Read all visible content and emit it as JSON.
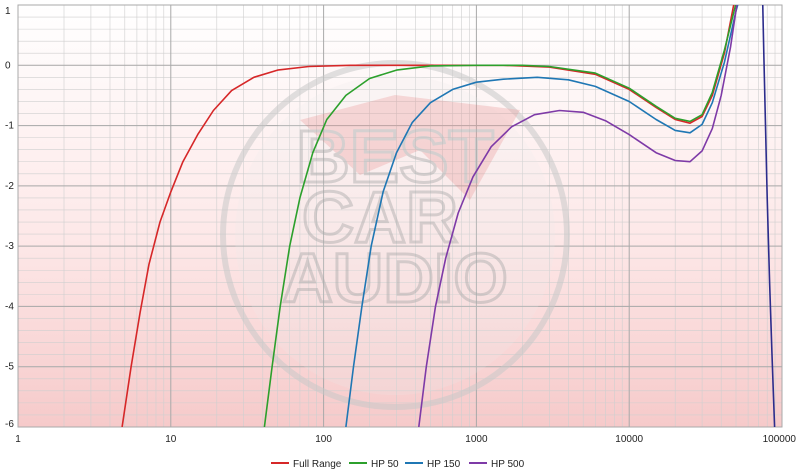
{
  "colors": {
    "background_top": "#ffffff",
    "background_bottom": "#f6caca",
    "grid_major": "#a9a9a9",
    "grid_minor": "#cfcfcf",
    "watermark": "#c9c9c9",
    "watermark_accent": "#e07b7b"
  },
  "watermark": {
    "line1": "BEST",
    "line2": "CAR",
    "line3": "AUDIO"
  },
  "chart_data": {
    "type": "line",
    "title": "",
    "xlabel": "",
    "ylabel": "",
    "x_scale": "log",
    "xlim": [
      1,
      100000
    ],
    "ylim": [
      -6,
      1
    ],
    "x_ticks": [
      1,
      10,
      100,
      1000,
      10000,
      100000
    ],
    "x_tick_labels": [
      "1",
      "10",
      "100",
      "1000",
      "10000",
      "100000"
    ],
    "y_ticks": [
      1,
      0,
      -1,
      -2,
      -3,
      -4,
      -5,
      -6
    ],
    "y_tick_labels": [
      "1",
      "0",
      "-1",
      "-2",
      "-3",
      "-4",
      "-5",
      "-6"
    ],
    "grid": true,
    "legend_position": "bottom",
    "series": [
      {
        "name": "Full Range",
        "color": "#d62728",
        "points": [
          [
            4.8,
            -6
          ],
          [
            5.5,
            -5
          ],
          [
            6.3,
            -4.1
          ],
          [
            7.2,
            -3.3
          ],
          [
            8.5,
            -2.6
          ],
          [
            10,
            -2.1
          ],
          [
            12,
            -1.6
          ],
          [
            15,
            -1.15
          ],
          [
            19,
            -0.75
          ],
          [
            25,
            -0.42
          ],
          [
            35,
            -0.2
          ],
          [
            50,
            -0.08
          ],
          [
            80,
            -0.02
          ],
          [
            150,
            0
          ],
          [
            500,
            0
          ],
          [
            1500,
            0
          ],
          [
            3000,
            -0.03
          ],
          [
            6000,
            -0.15
          ],
          [
            10000,
            -0.4
          ],
          [
            15000,
            -0.7
          ],
          [
            20000,
            -0.9
          ],
          [
            25000,
            -0.96
          ],
          [
            30000,
            -0.85
          ],
          [
            35000,
            -0.5
          ],
          [
            42000,
            0.2
          ],
          [
            50000,
            1.2
          ]
        ]
      },
      {
        "name": "HP 50",
        "color": "#2ca02c",
        "points": [
          [
            41,
            -6
          ],
          [
            46,
            -5
          ],
          [
            52,
            -4
          ],
          [
            60,
            -3
          ],
          [
            70,
            -2.2
          ],
          [
            85,
            -1.45
          ],
          [
            105,
            -0.9
          ],
          [
            140,
            -0.5
          ],
          [
            200,
            -0.22
          ],
          [
            300,
            -0.08
          ],
          [
            500,
            -0.01
          ],
          [
            1000,
            0
          ],
          [
            2000,
            0
          ],
          [
            3000,
            -0.02
          ],
          [
            6000,
            -0.13
          ],
          [
            10000,
            -0.38
          ],
          [
            15000,
            -0.68
          ],
          [
            20000,
            -0.88
          ],
          [
            25000,
            -0.93
          ],
          [
            30000,
            -0.82
          ],
          [
            35000,
            -0.45
          ],
          [
            42000,
            0.25
          ],
          [
            52000,
            1.2
          ]
        ]
      },
      {
        "name": "HP 150",
        "color": "#1f77b4",
        "points": [
          [
            140,
            -6
          ],
          [
            157,
            -5
          ],
          [
            178,
            -4
          ],
          [
            205,
            -3
          ],
          [
            245,
            -2.1
          ],
          [
            300,
            -1.45
          ],
          [
            380,
            -0.95
          ],
          [
            500,
            -0.62
          ],
          [
            700,
            -0.4
          ],
          [
            1000,
            -0.28
          ],
          [
            1500,
            -0.23
          ],
          [
            2500,
            -0.2
          ],
          [
            4000,
            -0.24
          ],
          [
            6000,
            -0.35
          ],
          [
            10000,
            -0.6
          ],
          [
            15000,
            -0.9
          ],
          [
            20000,
            -1.08
          ],
          [
            25000,
            -1.12
          ],
          [
            30000,
            -0.98
          ],
          [
            35000,
            -0.62
          ],
          [
            42000,
            0.05
          ],
          [
            50000,
            0.9
          ],
          [
            54000,
            1.2
          ]
        ]
      },
      {
        "name": "HP 500",
        "color": "#7e3aa7",
        "points": [
          [
            420,
            -6
          ],
          [
            470,
            -5
          ],
          [
            540,
            -4
          ],
          [
            630,
            -3.2
          ],
          [
            760,
            -2.45
          ],
          [
            950,
            -1.85
          ],
          [
            1250,
            -1.35
          ],
          [
            1700,
            -1.02
          ],
          [
            2400,
            -0.82
          ],
          [
            3500,
            -0.75
          ],
          [
            5000,
            -0.78
          ],
          [
            7000,
            -0.92
          ],
          [
            10000,
            -1.15
          ],
          [
            15000,
            -1.45
          ],
          [
            20000,
            -1.58
          ],
          [
            25000,
            -1.6
          ],
          [
            30000,
            -1.42
          ],
          [
            35000,
            -1.05
          ],
          [
            40000,
            -0.5
          ],
          [
            46000,
            0.3
          ],
          [
            52000,
            1.2
          ]
        ]
      },
      {
        "name": "",
        "color": "#2c2c8c",
        "points": [
          [
            74500,
            1.2
          ],
          [
            76000,
            0.2
          ],
          [
            78000,
            -1
          ],
          [
            80000,
            -2.2
          ],
          [
            83000,
            -3.6
          ],
          [
            86000,
            -4.8
          ],
          [
            88000,
            -5.5
          ],
          [
            89500,
            -6
          ]
        ]
      }
    ]
  }
}
